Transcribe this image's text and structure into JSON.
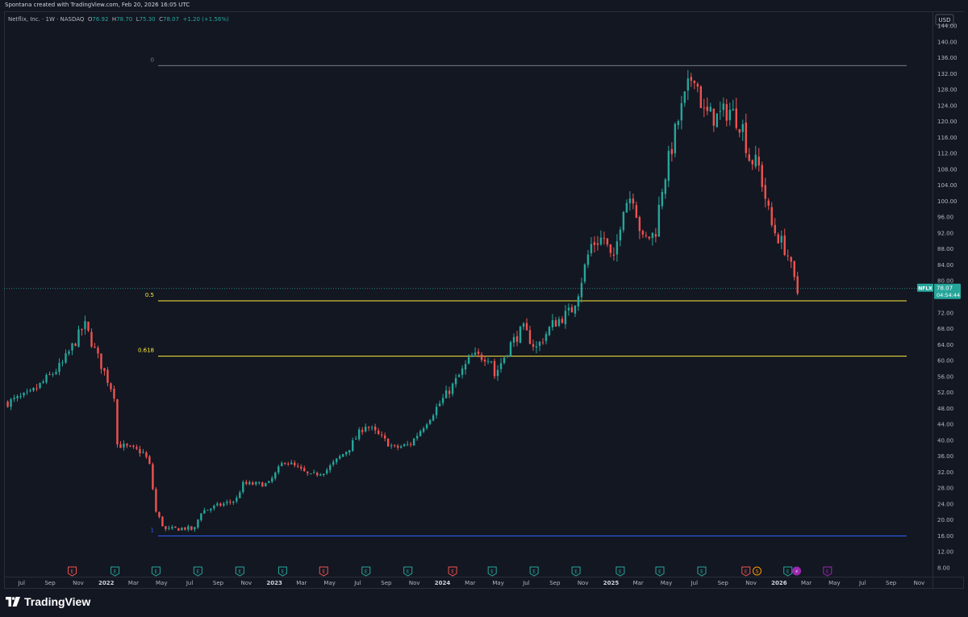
{
  "header": {
    "credit": "Spontana created with TradingView.com, Feb 20, 2026 16:05 UTC"
  },
  "legend": {
    "symbol_text": "Netflix, Inc. · 1W · NASDAQ",
    "open_label": "O",
    "open": "76.92",
    "high_label": "H",
    "high": "78.70",
    "low_label": "L",
    "low": "75.30",
    "close_label": "C",
    "close": "78.07",
    "change": "+1.20 (+1.56%)"
  },
  "price_axis": {
    "currency": "USD",
    "ticks": [
      "8.00",
      "12.00",
      "16.00",
      "20.00",
      "24.00",
      "28.00",
      "32.00",
      "36.00",
      "40.00",
      "44.00",
      "48.00",
      "52.00",
      "56.00",
      "60.00",
      "64.00",
      "68.00",
      "72.00",
      "76.00",
      "80.00",
      "84.00",
      "88.00",
      "92.00",
      "96.00",
      "100.00",
      "104.00",
      "108.00",
      "112.00",
      "116.00",
      "120.00",
      "124.00",
      "128.00",
      "132.00",
      "136.00",
      "140.00",
      "144.00"
    ]
  },
  "price_badge": {
    "symbol": "NFLX",
    "price": "78.07",
    "countdown": "04:54:44"
  },
  "time_axis": {
    "labels": [
      "Jul",
      "Sep",
      "Nov",
      "2022",
      "Mar",
      "May",
      "Jul",
      "Sep",
      "Nov",
      "2023",
      "Mar",
      "May",
      "Jul",
      "Sep",
      "Nov",
      "2024",
      "Mar",
      "May",
      "Jul",
      "Sep",
      "Nov",
      "2025",
      "Mar",
      "May",
      "Jul",
      "Sep",
      "Nov",
      "2026",
      "Mar",
      "May",
      "Jul",
      "Sep",
      "Nov"
    ]
  },
  "fib_levels": [
    {
      "label": "0",
      "price": 134.0
    },
    {
      "label": "0.5",
      "price": 75.0
    },
    {
      "label": "0.618",
      "price": 61.1
    },
    {
      "label": "1",
      "price": 16.0
    }
  ],
  "event_markers": [
    {
      "date": "2021-10-19",
      "letter": "E",
      "kind": "neg"
    },
    {
      "date": "2022-01-20",
      "letter": "E",
      "kind": "pos"
    },
    {
      "date": "2022-04-19",
      "letter": "E",
      "kind": "pos"
    },
    {
      "date": "2022-07-19",
      "letter": "E",
      "kind": "pos"
    },
    {
      "date": "2022-10-18",
      "letter": "E",
      "kind": "pos"
    },
    {
      "date": "2023-01-19",
      "letter": "E",
      "kind": "pos"
    },
    {
      "date": "2023-04-18",
      "letter": "E",
      "kind": "neg"
    },
    {
      "date": "2023-07-19",
      "letter": "E",
      "kind": "pos"
    },
    {
      "date": "2023-10-18",
      "letter": "E",
      "kind": "pos"
    },
    {
      "date": "2024-01-23",
      "letter": "E",
      "kind": "neg"
    },
    {
      "date": "2024-04-18",
      "letter": "E",
      "kind": "pos"
    },
    {
      "date": "2024-07-18",
      "letter": "E",
      "kind": "pos"
    },
    {
      "date": "2024-10-17",
      "letter": "E",
      "kind": "pos"
    },
    {
      "date": "2025-01-21",
      "letter": "E",
      "kind": "pos"
    },
    {
      "date": "2025-04-17",
      "letter": "E",
      "kind": "pos"
    },
    {
      "date": "2025-07-17",
      "letter": "E",
      "kind": "pos"
    },
    {
      "date": "2025-10-21",
      "letter": "E",
      "kind": "neg"
    },
    {
      "date": "2025-11-14",
      "letter": "S",
      "kind": "split"
    },
    {
      "date": "2026-01-20",
      "letter": "E",
      "kind": "pos"
    },
    {
      "date": "2026-02-08",
      "letter": "⚡",
      "kind": "flash"
    },
    {
      "date": "2026-04-16",
      "letter": "E",
      "kind": "future"
    }
  ],
  "colors": {
    "background": "#131722",
    "up": "#26a69a",
    "down": "#ef5350",
    "fib_0": "#787b86",
    "fib_05": "#ffeb3b",
    "fib_0618": "#ffeb3b",
    "fib_1": "#2962ff",
    "grid": "#1e222d",
    "axis_text": "#b2b5be"
  },
  "footer": {
    "logo_text": "TradingView",
    "logo_icon": "tradingview-logo-icon"
  },
  "chart_data": {
    "type": "candlestick",
    "title": "Netflix, Inc. · 1W · NASDAQ",
    "interval": "1W",
    "ylabel": "USD",
    "ylim": [
      4,
      148
    ],
    "xlim": [
      "2021-05-24",
      "2026-11-30"
    ],
    "grid": false,
    "anchors": [
      [
        "2021-06-01",
        49.5
      ],
      [
        "2021-07-19",
        51.5
      ],
      [
        "2021-09-27",
        59
      ],
      [
        "2021-11-15",
        69
      ],
      [
        "2021-12-13",
        61
      ],
      [
        "2022-01-18",
        51.5
      ],
      [
        "2022-01-24",
        39
      ],
      [
        "2022-03-21",
        37
      ],
      [
        "2022-04-04",
        34.5
      ],
      [
        "2022-04-19",
        22
      ],
      [
        "2022-05-09",
        17.5
      ],
      [
        "2022-06-20",
        18
      ],
      [
        "2022-07-11",
        17.5
      ],
      [
        "2022-07-25",
        22
      ],
      [
        "2022-08-29",
        23.5
      ],
      [
        "2022-10-10",
        25
      ],
      [
        "2022-10-24",
        29
      ],
      [
        "2022-12-19",
        29
      ],
      [
        "2023-01-23",
        35
      ],
      [
        "2023-03-20",
        31
      ],
      [
        "2023-04-24",
        32.5
      ],
      [
        "2023-06-12",
        38
      ],
      [
        "2023-07-17",
        44
      ],
      [
        "2023-09-18",
        38
      ],
      [
        "2023-10-23",
        39
      ],
      [
        "2023-12-18",
        48
      ],
      [
        "2024-01-22",
        53.5
      ],
      [
        "2024-03-04",
        61
      ],
      [
        "2024-04-15",
        61
      ],
      [
        "2024-04-22",
        56
      ],
      [
        "2024-05-27",
        64
      ],
      [
        "2024-06-24",
        68
      ],
      [
        "2024-07-22",
        63
      ],
      [
        "2024-08-26",
        69
      ],
      [
        "2024-10-07",
        72.5
      ],
      [
        "2024-10-21",
        77
      ],
      [
        "2024-11-18",
        89
      ],
      [
        "2024-12-16",
        91
      ],
      [
        "2025-01-06",
        84
      ],
      [
        "2025-01-27",
        99
      ],
      [
        "2025-02-17",
        102
      ],
      [
        "2025-03-10",
        90
      ],
      [
        "2025-04-07",
        92
      ],
      [
        "2025-04-21",
        103
      ],
      [
        "2025-05-26",
        120
      ],
      [
        "2025-06-30",
        133
      ],
      [
        "2025-07-21",
        122
      ],
      [
        "2025-08-18",
        121
      ],
      [
        "2025-09-15",
        123
      ],
      [
        "2025-10-13",
        119
      ],
      [
        "2025-10-27",
        111
      ],
      [
        "2025-11-17",
        109
      ],
      [
        "2025-12-15",
        94
      ],
      [
        "2026-01-19",
        87
      ],
      [
        "2026-02-09",
        76.87
      ],
      [
        "2026-02-16",
        78.07
      ]
    ],
    "last_bar": {
      "date": "2026-02-16",
      "open": 76.92,
      "high": 78.7,
      "low": 75.3,
      "close": 78.07,
      "change": 1.2,
      "change_pct": 1.56
    }
  }
}
